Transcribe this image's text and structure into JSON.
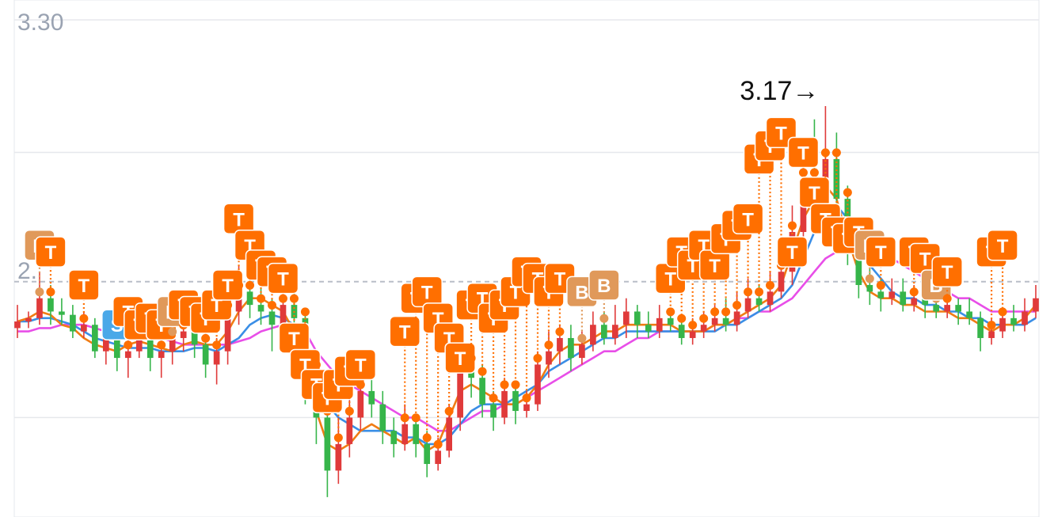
{
  "chart_data": {
    "type": "candlestick",
    "title": "",
    "xlabel": "",
    "ylabel": "",
    "ylim": [
      2.55,
      3.33
    ],
    "y_ticks_shown": [
      "3.30",
      "2."
    ],
    "grid": true,
    "legend": "none",
    "colors": {
      "up": "#e03a3a",
      "down": "#36b54a",
      "ma_short": "#f07c14",
      "ma_mid": "#3a8ee6",
      "ma_long": "#e84ee8",
      "marker_T": "#ff6f00",
      "marker_B": "#e0995a",
      "marker_S": "#4aa8e8",
      "dashed_ref": "#b9bec8"
    },
    "dashed_ref_level": 2.905,
    "max_annotation": {
      "label": "3.17→",
      "value": 3.17
    },
    "candles": [
      [
        2.835,
        2.845,
        2.87,
        2.82
      ],
      [
        2.845,
        2.85,
        2.86,
        2.835
      ],
      [
        2.85,
        2.88,
        2.92,
        2.84
      ],
      [
        2.88,
        2.86,
        2.9,
        2.84
      ],
      [
        2.86,
        2.855,
        2.88,
        2.84
      ],
      [
        2.855,
        2.83,
        2.87,
        2.82
      ],
      [
        2.83,
        2.84,
        2.86,
        2.82
      ],
      [
        2.84,
        2.8,
        2.85,
        2.79
      ],
      [
        2.8,
        2.82,
        2.83,
        2.78
      ],
      [
        2.82,
        2.79,
        2.84,
        2.77
      ],
      [
        2.79,
        2.8,
        2.82,
        2.76
      ],
      [
        2.8,
        2.83,
        2.85,
        2.79
      ],
      [
        2.83,
        2.79,
        2.85,
        2.77
      ],
      [
        2.79,
        2.8,
        2.81,
        2.76
      ],
      [
        2.8,
        2.82,
        2.83,
        2.78
      ],
      [
        2.82,
        2.83,
        2.85,
        2.8
      ],
      [
        2.83,
        2.81,
        2.84,
        2.79
      ],
      [
        2.81,
        2.78,
        2.82,
        2.76
      ],
      [
        2.78,
        2.8,
        2.82,
        2.75
      ],
      [
        2.8,
        2.86,
        2.88,
        2.78
      ],
      [
        2.86,
        2.89,
        2.93,
        2.84
      ],
      [
        2.89,
        2.87,
        2.92,
        2.85
      ],
      [
        2.87,
        2.86,
        2.9,
        2.84
      ],
      [
        2.86,
        2.84,
        2.88,
        2.8
      ],
      [
        2.84,
        2.87,
        2.9,
        2.82
      ],
      [
        2.87,
        2.85,
        2.89,
        2.83
      ],
      [
        2.85,
        2.77,
        2.86,
        2.72
      ],
      [
        2.77,
        2.7,
        2.78,
        2.66
      ],
      [
        2.7,
        2.62,
        2.73,
        2.58
      ],
      [
        2.62,
        2.66,
        2.7,
        2.6
      ],
      [
        2.66,
        2.7,
        2.74,
        2.64
      ],
      [
        2.7,
        2.74,
        2.76,
        2.68
      ],
      [
        2.74,
        2.72,
        2.77,
        2.7
      ],
      [
        2.72,
        2.68,
        2.74,
        2.66
      ],
      [
        2.68,
        2.66,
        2.7,
        2.64
      ],
      [
        2.66,
        2.69,
        2.72,
        2.65
      ],
      [
        2.69,
        2.66,
        2.7,
        2.64
      ],
      [
        2.66,
        2.63,
        2.68,
        2.61
      ],
      [
        2.63,
        2.65,
        2.67,
        2.62
      ],
      [
        2.65,
        2.7,
        2.72,
        2.64
      ],
      [
        2.7,
        2.78,
        2.8,
        2.68
      ],
      [
        2.78,
        2.76,
        2.8,
        2.73
      ],
      [
        2.76,
        2.72,
        2.78,
        2.7
      ],
      [
        2.72,
        2.7,
        2.74,
        2.68
      ],
      [
        2.7,
        2.74,
        2.76,
        2.69
      ],
      [
        2.74,
        2.71,
        2.75,
        2.69
      ],
      [
        2.71,
        2.72,
        2.74,
        2.7
      ],
      [
        2.72,
        2.78,
        2.8,
        2.71
      ],
      [
        2.78,
        2.8,
        2.83,
        2.76
      ],
      [
        2.8,
        2.82,
        2.84,
        2.78
      ],
      [
        2.82,
        2.79,
        2.84,
        2.77
      ],
      [
        2.79,
        2.81,
        2.83,
        2.78
      ],
      [
        2.81,
        2.84,
        2.86,
        2.8
      ],
      [
        2.84,
        2.82,
        2.86,
        2.81
      ],
      [
        2.82,
        2.84,
        2.87,
        2.81
      ],
      [
        2.84,
        2.86,
        2.88,
        2.82
      ],
      [
        2.86,
        2.84,
        2.87,
        2.82
      ],
      [
        2.84,
        2.83,
        2.86,
        2.82
      ],
      [
        2.83,
        2.85,
        2.87,
        2.82
      ],
      [
        2.85,
        2.84,
        2.86,
        2.83
      ],
      [
        2.84,
        2.82,
        2.85,
        2.81
      ],
      [
        2.82,
        2.83,
        2.85,
        2.81
      ],
      [
        2.83,
        2.84,
        2.86,
        2.82
      ],
      [
        2.84,
        2.85,
        2.87,
        2.83
      ],
      [
        2.85,
        2.84,
        2.88,
        2.83
      ],
      [
        2.84,
        2.86,
        2.89,
        2.83
      ],
      [
        2.86,
        2.88,
        2.91,
        2.85
      ],
      [
        2.88,
        2.87,
        2.9,
        2.86
      ],
      [
        2.87,
        2.89,
        2.92,
        2.86
      ],
      [
        2.89,
        2.92,
        2.96,
        2.88
      ],
      [
        2.92,
        2.98,
        3.02,
        2.9
      ],
      [
        2.98,
        3.06,
        3.12,
        2.96
      ],
      [
        3.06,
        3.02,
        3.15,
        2.99
      ],
      [
        3.02,
        3.09,
        3.17,
        3.0
      ],
      [
        3.09,
        3.03,
        3.13,
        2.98
      ],
      [
        3.03,
        2.95,
        3.05,
        2.93
      ],
      [
        2.95,
        2.9,
        2.97,
        2.88
      ],
      [
        2.9,
        2.89,
        2.93,
        2.87
      ],
      [
        2.89,
        2.88,
        2.91,
        2.86
      ],
      [
        2.88,
        2.89,
        2.91,
        2.87
      ],
      [
        2.89,
        2.87,
        2.91,
        2.86
      ],
      [
        2.87,
        2.88,
        2.9,
        2.86
      ],
      [
        2.88,
        2.87,
        2.9,
        2.85
      ],
      [
        2.87,
        2.86,
        2.89,
        2.85
      ],
      [
        2.86,
        2.87,
        2.89,
        2.85
      ],
      [
        2.87,
        2.86,
        2.88,
        2.84
      ],
      [
        2.86,
        2.85,
        2.88,
        2.84
      ],
      [
        2.85,
        2.82,
        2.86,
        2.8
      ],
      [
        2.82,
        2.83,
        2.85,
        2.81
      ],
      [
        2.83,
        2.85,
        2.86,
        2.82
      ],
      [
        2.85,
        2.84,
        2.87,
        2.83
      ],
      [
        2.84,
        2.86,
        2.88,
        2.83
      ],
      [
        2.86,
        2.88,
        2.9,
        2.85
      ]
    ],
    "series": [
      {
        "name": "",
        "color": "#f07c14",
        "values": [
          2.845,
          2.85,
          2.86,
          2.855,
          2.84,
          2.835,
          2.82,
          2.81,
          2.805,
          2.8,
          2.81,
          2.815,
          2.81,
          2.805,
          2.8,
          2.81,
          2.815,
          2.81,
          2.81,
          2.83,
          2.86,
          2.88,
          2.88,
          2.87,
          2.86,
          2.83,
          2.78,
          2.71,
          2.66,
          2.65,
          2.66,
          2.68,
          2.69,
          2.68,
          2.67,
          2.66,
          2.67,
          2.65,
          2.66,
          2.7,
          2.74,
          2.75,
          2.74,
          2.73,
          2.72,
          2.72,
          2.73,
          2.75,
          2.78,
          2.8,
          2.81,
          2.81,
          2.82,
          2.83,
          2.83,
          2.84,
          2.84,
          2.84,
          2.84,
          2.84,
          2.83,
          2.83,
          2.83,
          2.84,
          2.84,
          2.85,
          2.86,
          2.87,
          2.88,
          2.9,
          2.95,
          3.0,
          3.03,
          3.05,
          3.03,
          2.97,
          2.92,
          2.89,
          2.88,
          2.88,
          2.87,
          2.87,
          2.86,
          2.86,
          2.86,
          2.85,
          2.85,
          2.84,
          2.83,
          2.84,
          2.84,
          2.85,
          2.87
        ]
      },
      {
        "name": "",
        "color": "#3a8ee6",
        "values": [
          2.845,
          2.845,
          2.85,
          2.85,
          2.845,
          2.84,
          2.83,
          2.82,
          2.815,
          2.81,
          2.805,
          2.805,
          2.805,
          2.8,
          2.8,
          2.8,
          2.805,
          2.805,
          2.8,
          2.81,
          2.82,
          2.84,
          2.85,
          2.855,
          2.85,
          2.84,
          2.81,
          2.76,
          2.72,
          2.7,
          2.69,
          2.68,
          2.68,
          2.68,
          2.68,
          2.67,
          2.67,
          2.66,
          2.66,
          2.67,
          2.69,
          2.71,
          2.72,
          2.72,
          2.72,
          2.73,
          2.74,
          2.75,
          2.77,
          2.78,
          2.79,
          2.8,
          2.81,
          2.82,
          2.82,
          2.83,
          2.83,
          2.83,
          2.83,
          2.83,
          2.83,
          2.83,
          2.83,
          2.83,
          2.84,
          2.84,
          2.85,
          2.86,
          2.87,
          2.88,
          2.9,
          2.94,
          2.98,
          3.01,
          3.02,
          3.0,
          2.97,
          2.93,
          2.91,
          2.89,
          2.88,
          2.88,
          2.87,
          2.87,
          2.86,
          2.86,
          2.85,
          2.85,
          2.84,
          2.84,
          2.84,
          2.84,
          2.85
        ]
      },
      {
        "name": "",
        "color": "#e84ee8",
        "values": [
          2.83,
          2.83,
          2.835,
          2.835,
          2.84,
          2.84,
          2.84,
          2.835,
          2.83,
          2.83,
          2.825,
          2.82,
          2.82,
          2.82,
          2.815,
          2.81,
          2.81,
          2.81,
          2.81,
          2.81,
          2.815,
          2.82,
          2.83,
          2.835,
          2.84,
          2.84,
          2.83,
          2.8,
          2.78,
          2.76,
          2.75,
          2.74,
          2.73,
          2.72,
          2.71,
          2.7,
          2.7,
          2.69,
          2.68,
          2.68,
          2.69,
          2.7,
          2.71,
          2.71,
          2.72,
          2.72,
          2.73,
          2.74,
          2.75,
          2.76,
          2.77,
          2.78,
          2.79,
          2.8,
          2.8,
          2.81,
          2.82,
          2.82,
          2.83,
          2.83,
          2.83,
          2.83,
          2.83,
          2.84,
          2.84,
          2.85,
          2.85,
          2.86,
          2.86,
          2.87,
          2.88,
          2.9,
          2.92,
          2.94,
          2.95,
          2.96,
          2.96,
          2.96,
          2.95,
          2.94,
          2.93,
          2.92,
          2.91,
          2.9,
          2.89,
          2.88,
          2.88,
          2.87,
          2.86,
          2.86,
          2.86,
          2.86,
          2.86
        ]
      }
    ],
    "markers": [
      {
        "i": 2,
        "label": "B",
        "kind": "B",
        "v": 2.96
      },
      {
        "i": 3,
        "label": "T",
        "kind": "T",
        "v": 2.95
      },
      {
        "i": 6,
        "label": "T",
        "kind": "T",
        "v": 2.9
      },
      {
        "i": 9,
        "label": "S",
        "kind": "S",
        "v": 2.84
      },
      {
        "i": 10,
        "label": "T",
        "kind": "T",
        "v": 2.86
      },
      {
        "i": 11,
        "label": "T",
        "kind": "T",
        "v": 2.84
      },
      {
        "i": 12,
        "label": "T",
        "kind": "T",
        "v": 2.85
      },
      {
        "i": 13,
        "label": "T",
        "kind": "T",
        "v": 2.84
      },
      {
        "i": 14,
        "label": "B",
        "kind": "B",
        "v": 2.86
      },
      {
        "i": 15,
        "label": "T",
        "kind": "T",
        "v": 2.87
      },
      {
        "i": 16,
        "label": "T",
        "kind": "T",
        "v": 2.86
      },
      {
        "i": 17,
        "label": "T",
        "kind": "T",
        "v": 2.85
      },
      {
        "i": 18,
        "label": "T",
        "kind": "T",
        "v": 2.87
      },
      {
        "i": 19,
        "label": "T",
        "kind": "T",
        "v": 2.9
      },
      {
        "i": 20,
        "label": "T",
        "kind": "T",
        "v": 3.0
      },
      {
        "i": 21,
        "label": "T",
        "kind": "T",
        "v": 2.96
      },
      {
        "i": 22,
        "label": "T",
        "kind": "T",
        "v": 2.93
      },
      {
        "i": 23,
        "label": "T",
        "kind": "T",
        "v": 2.92
      },
      {
        "i": 24,
        "label": "T",
        "kind": "T",
        "v": 2.91
      },
      {
        "i": 25,
        "label": "T",
        "kind": "T",
        "v": 2.82
      },
      {
        "i": 26,
        "label": "T",
        "kind": "T",
        "v": 2.78
      },
      {
        "i": 27,
        "label": "T",
        "kind": "T",
        "v": 2.75
      },
      {
        "i": 28,
        "label": "T",
        "kind": "T",
        "v": 2.73
      },
      {
        "i": 29,
        "label": "T",
        "kind": "T",
        "v": 2.75
      },
      {
        "i": 30,
        "label": "T",
        "kind": "T",
        "v": 2.77
      },
      {
        "i": 31,
        "label": "T",
        "kind": "T",
        "v": 2.78
      },
      {
        "i": 35,
        "label": "T",
        "kind": "T",
        "v": 2.83
      },
      {
        "i": 36,
        "label": "T",
        "kind": "T",
        "v": 2.88
      },
      {
        "i": 37,
        "label": "T",
        "kind": "T",
        "v": 2.89
      },
      {
        "i": 38,
        "label": "T",
        "kind": "T",
        "v": 2.85
      },
      {
        "i": 39,
        "label": "T",
        "kind": "T",
        "v": 2.82
      },
      {
        "i": 40,
        "label": "T",
        "kind": "T",
        "v": 2.79
      },
      {
        "i": 41,
        "label": "T",
        "kind": "T",
        "v": 2.87
      },
      {
        "i": 42,
        "label": "T",
        "kind": "T",
        "v": 2.88
      },
      {
        "i": 43,
        "label": "T",
        "kind": "T",
        "v": 2.85
      },
      {
        "i": 44,
        "label": "T",
        "kind": "T",
        "v": 2.87
      },
      {
        "i": 45,
        "label": "T",
        "kind": "T",
        "v": 2.89
      },
      {
        "i": 46,
        "label": "T",
        "kind": "T",
        "v": 2.92
      },
      {
        "i": 47,
        "label": "T",
        "kind": "T",
        "v": 2.91
      },
      {
        "i": 48,
        "label": "T",
        "kind": "T",
        "v": 2.89
      },
      {
        "i": 49,
        "label": "T",
        "kind": "T",
        "v": 2.91
      },
      {
        "i": 51,
        "label": "B",
        "kind": "B",
        "v": 2.89
      },
      {
        "i": 53,
        "label": "B",
        "kind": "B",
        "v": 2.9
      },
      {
        "i": 59,
        "label": "T",
        "kind": "T",
        "v": 2.91
      },
      {
        "i": 60,
        "label": "T",
        "kind": "T",
        "v": 2.95
      },
      {
        "i": 61,
        "label": "T",
        "kind": "T",
        "v": 2.93
      },
      {
        "i": 62,
        "label": "T",
        "kind": "T",
        "v": 2.96
      },
      {
        "i": 63,
        "label": "T",
        "kind": "T",
        "v": 2.93
      },
      {
        "i": 64,
        "label": "T",
        "kind": "T",
        "v": 2.97
      },
      {
        "i": 65,
        "label": "T",
        "kind": "T",
        "v": 2.99
      },
      {
        "i": 66,
        "label": "T",
        "kind": "T",
        "v": 3.0
      },
      {
        "i": 67,
        "label": "T",
        "kind": "T",
        "v": 3.09
      },
      {
        "i": 68,
        "label": "T",
        "kind": "T",
        "v": 3.11
      },
      {
        "i": 69,
        "label": "T",
        "kind": "T",
        "v": 3.13
      },
      {
        "i": 70,
        "label": "T",
        "kind": "T",
        "v": 2.95
      },
      {
        "i": 71,
        "label": "T",
        "kind": "T",
        "v": 3.1
      },
      {
        "i": 72,
        "label": "T",
        "kind": "T",
        "v": 3.04
      },
      {
        "i": 73,
        "label": "T",
        "kind": "T",
        "v": 3.0
      },
      {
        "i": 74,
        "label": "T",
        "kind": "T",
        "v": 2.98
      },
      {
        "i": 75,
        "label": "T",
        "kind": "T",
        "v": 2.97
      },
      {
        "i": 76,
        "label": "T",
        "kind": "T",
        "v": 2.98
      },
      {
        "i": 77,
        "label": "B",
        "kind": "B",
        "v": 2.96
      },
      {
        "i": 78,
        "label": "T",
        "kind": "T",
        "v": 2.95
      },
      {
        "i": 81,
        "label": "T",
        "kind": "T",
        "v": 2.95
      },
      {
        "i": 82,
        "label": "T",
        "kind": "T",
        "v": 2.94
      },
      {
        "i": 83,
        "label": "B",
        "kind": "B",
        "v": 2.9
      },
      {
        "i": 84,
        "label": "T",
        "kind": "T",
        "v": 2.92
      },
      {
        "i": 88,
        "label": "T",
        "kind": "T",
        "v": 2.95
      },
      {
        "i": 89,
        "label": "T",
        "kind": "T",
        "v": 2.96
      }
    ]
  }
}
